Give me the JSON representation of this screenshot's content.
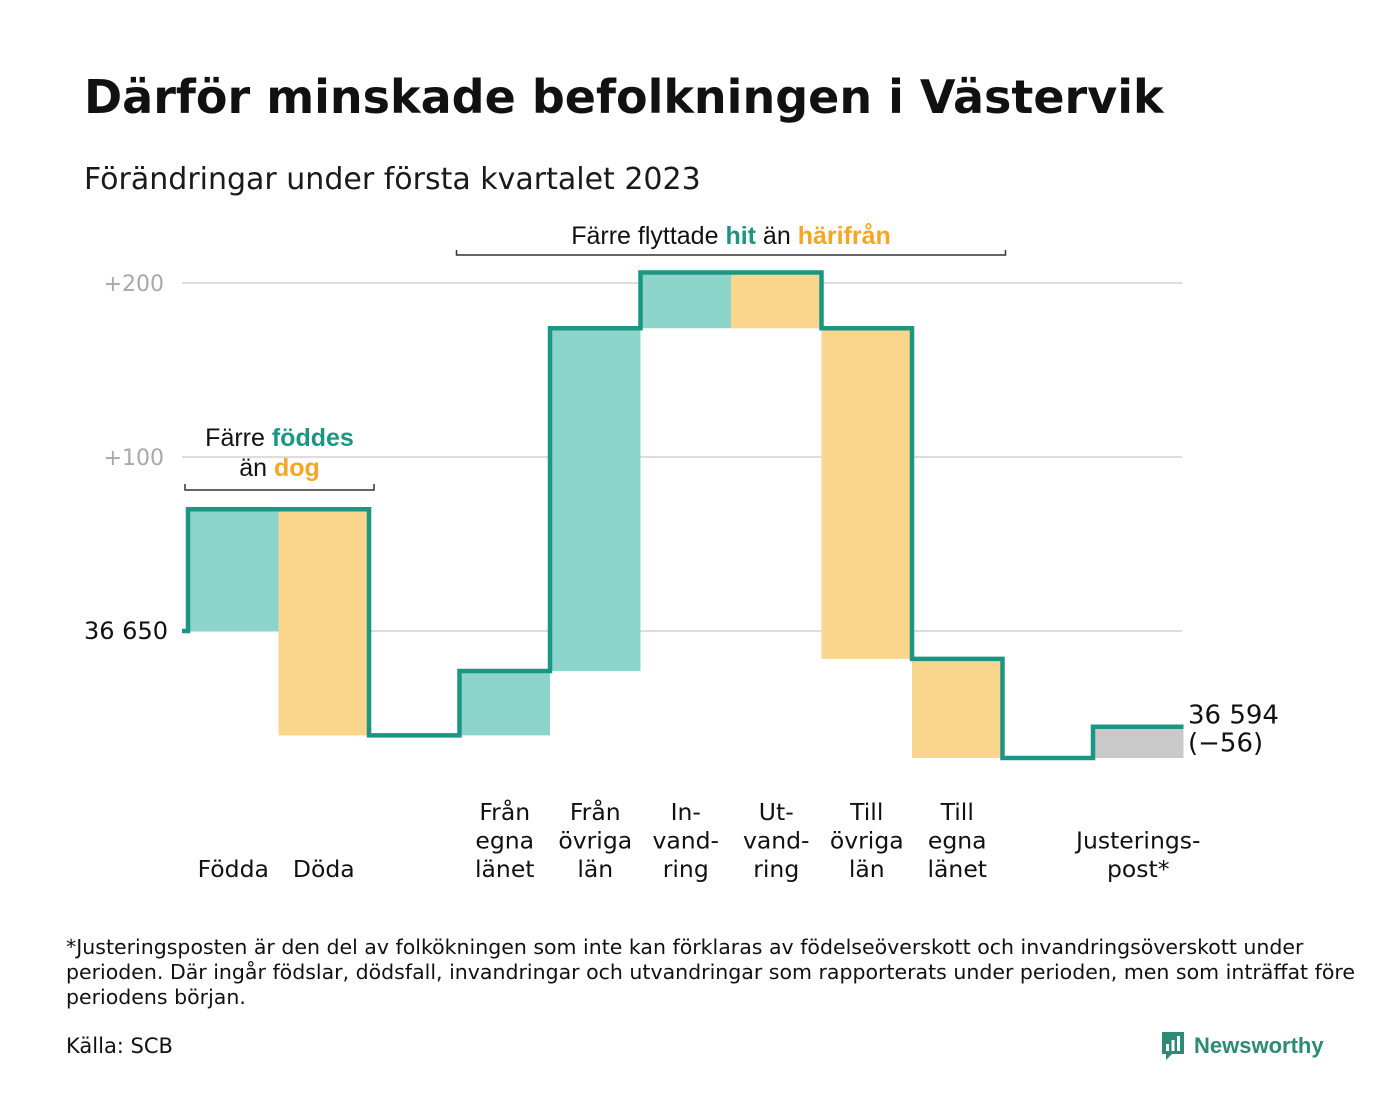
{
  "title": "Därför minskade befolkningen i Västervik",
  "subtitle": "Förändringar under första kvartalet 2023",
  "colors": {
    "teal_line": "#1b9683",
    "teal_fill": "#8dd5cb",
    "orange_fill": "#fad58c",
    "orange_text": "#f5a623",
    "teal_text": "#1b9683",
    "grey_fill": "#c9c9c9",
    "grid": "#dddddd"
  },
  "chart_data": {
    "type": "waterfall",
    "start_value": 36650,
    "start_label": "36 650",
    "end_value": 36594,
    "end_label": "36 594",
    "end_change_label": "(−56)",
    "y_ticks": [
      {
        "value": 200,
        "label": "+200"
      },
      {
        "value": 100,
        "label": "+100"
      }
    ],
    "grid": true,
    "steps": [
      {
        "label": [
          "Födda"
        ],
        "change": 70,
        "kind": "in"
      },
      {
        "label": [
          "Döda"
        ],
        "change": -130,
        "kind": "out"
      },
      {
        "label": [],
        "change": 0,
        "kind": "gap"
      },
      {
        "label": [
          "Från",
          "egna",
          "länet"
        ],
        "change": 37,
        "kind": "in"
      },
      {
        "label": [
          "Från",
          "övriga",
          "län"
        ],
        "change": 197,
        "kind": "in"
      },
      {
        "label": [
          "In-",
          "vand-",
          "ring"
        ],
        "change": 32,
        "kind": "in"
      },
      {
        "label": [
          "Ut-",
          "vand-",
          "ring"
        ],
        "change": -32,
        "kind": "out"
      },
      {
        "label": [
          "Till",
          "övriga",
          "län"
        ],
        "change": -190,
        "kind": "out"
      },
      {
        "label": [
          "Till",
          "egna",
          "länet"
        ],
        "change": -57,
        "kind": "out"
      },
      {
        "label": [],
        "change": 0,
        "kind": "gap"
      },
      {
        "label": [
          "Justerings-",
          "post*"
        ],
        "change": 18,
        "kind": "adjust"
      }
    ],
    "annotations": [
      {
        "parts": [
          {
            "text": "Färre ",
            "style": "plain"
          },
          {
            "text": "föddes",
            "style": "teal"
          }
        ],
        "parts2": [
          {
            "text": "än ",
            "style": "plain"
          },
          {
            "text": "dog",
            "style": "orange"
          }
        ],
        "from_step": 0,
        "to_step": 1
      },
      {
        "parts": [
          {
            "text": "Färre flyttade ",
            "style": "plain"
          },
          {
            "text": "hit",
            "style": "teal"
          },
          {
            "text": " än ",
            "style": "plain"
          },
          {
            "text": "härifrån",
            "style": "orange"
          }
        ],
        "from_step": 3,
        "to_step": 8
      }
    ]
  },
  "footnote": "*Justeringsposten är den del av folkökningen som inte kan förklaras av födelseöverskott och invandringsöverskott under perioden. Där ingår födslar, dödsfall, invandringar och utvandringar som rapporterats under perioden, men som inträffat före periodens början.",
  "source": "Källa: SCB",
  "logo": {
    "text": "Newsworthy",
    "icon": "newsworthy-bar-chart-icon"
  }
}
